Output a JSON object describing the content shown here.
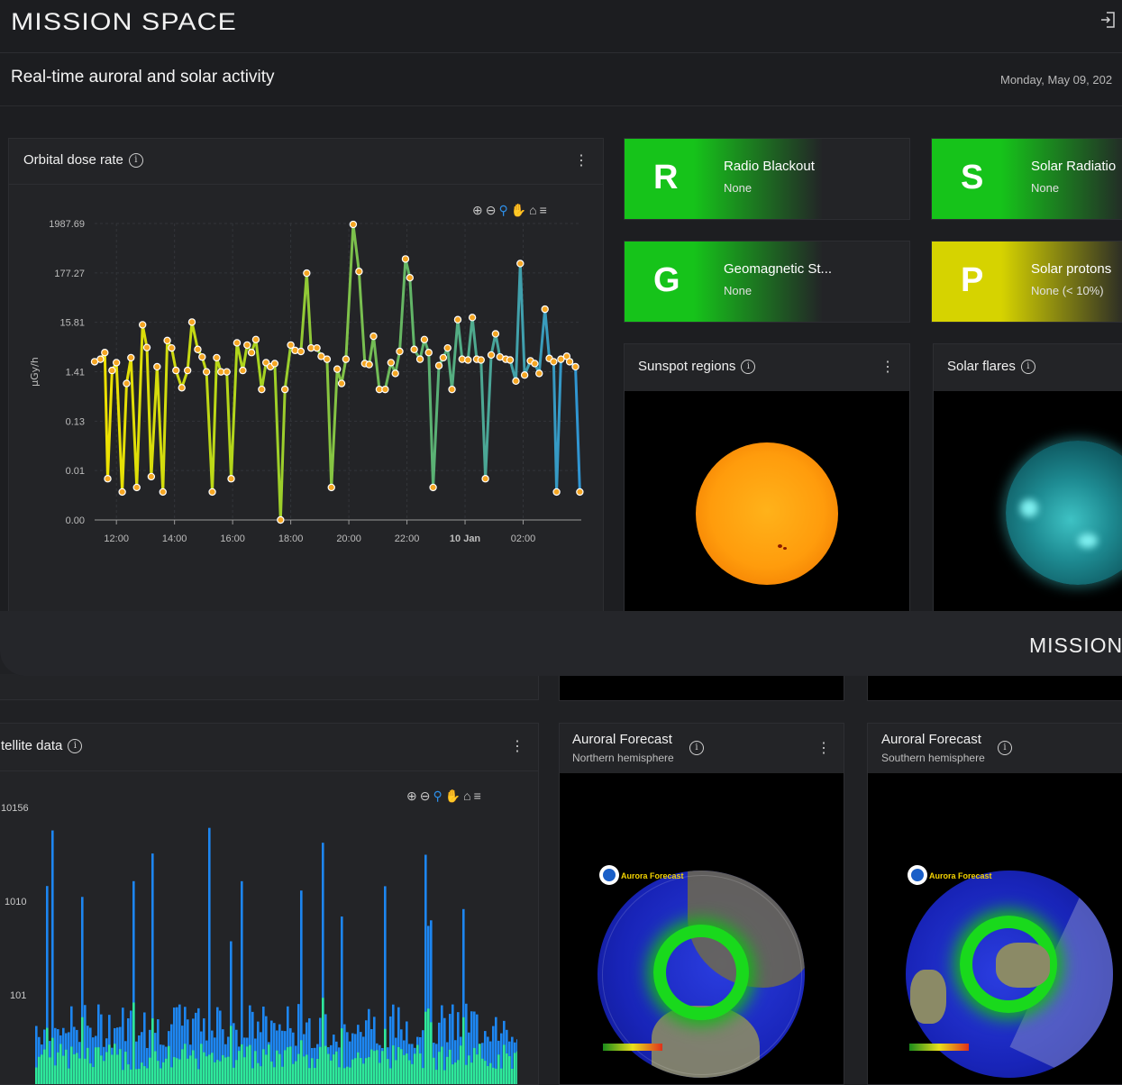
{
  "app": {
    "brand": "MISSION SPACE",
    "footer_brand": "MISSION"
  },
  "header": {
    "title": "Real-time auroral and solar activity",
    "date": "Monday, May 09, 202"
  },
  "dose_panel": {
    "title": "Orbital dose rate",
    "y_axis_label": "μGy/h",
    "toolbar": [
      "zoom-in-icon",
      "zoom-out-icon",
      "zoom-select-icon",
      "pan-icon",
      "home-icon",
      "menu-icon"
    ]
  },
  "alerts": [
    {
      "letter": "R",
      "title": "Radio Blackout",
      "status": "None",
      "color": "#16c31a"
    },
    {
      "letter": "S",
      "title": "Solar Radiatio",
      "status": "None",
      "color": "#16c31a"
    },
    {
      "letter": "G",
      "title": "Geomagnetic St...",
      "status": "None",
      "color": "#16c31a"
    },
    {
      "letter": "P",
      "title": "Solar protons",
      "status": "None (< 10%)",
      "color": "#d6d300"
    }
  ],
  "sunspot": {
    "title": "Sunspot regions"
  },
  "flares": {
    "title": "Solar flares"
  },
  "satellite": {
    "title": "tellite data",
    "y_ticks": [
      "10156",
      "1010",
      "101"
    ]
  },
  "aurora_north": {
    "title": "Auroral Forecast",
    "subtitle": "Northern hemisphere",
    "map_title": "Aurora Forecast"
  },
  "aurora_south": {
    "title": "Auroral Forecast",
    "subtitle": "Southern hemisphere",
    "map_title": "Aurora Forecast"
  },
  "chart_data": {
    "type": "line",
    "title": "Orbital dose rate",
    "ylabel": "μGy/h",
    "y_scale": "log",
    "y_ticks": [
      "0.00",
      "0.01",
      "0.13",
      "1.41",
      "15.81",
      "177.27",
      "1987.69"
    ],
    "x_ticks": [
      "12:00",
      "14:00",
      "16:00",
      "18:00",
      "20:00",
      "22:00",
      "10 Jan",
      "02:00"
    ],
    "x_range": [
      11.25,
      28.0
    ],
    "grid": true,
    "line_colors": [
      "#f2e200",
      "#a8d41f",
      "#5fb46a",
      "#2f95d3"
    ],
    "points": [
      [
        11.25,
        2.3
      ],
      [
        11.45,
        2.6
      ],
      [
        11.6,
        3.6
      ],
      [
        11.7,
        0.007
      ],
      [
        11.85,
        1.5
      ],
      [
        12.0,
        2.2
      ],
      [
        12.2,
        0.003
      ],
      [
        12.35,
        0.8
      ],
      [
        12.5,
        2.8
      ],
      [
        12.7,
        0.004
      ],
      [
        12.9,
        14
      ],
      [
        13.05,
        4.6
      ],
      [
        13.2,
        0.008
      ],
      [
        13.4,
        1.8
      ],
      [
        13.6,
        0.003
      ],
      [
        13.75,
        6.5
      ],
      [
        13.9,
        4.5
      ],
      [
        14.05,
        1.5
      ],
      [
        14.25,
        0.65
      ],
      [
        14.45,
        1.5
      ],
      [
        14.6,
        16
      ],
      [
        14.8,
        4.2
      ],
      [
        14.95,
        2.9
      ],
      [
        15.1,
        1.4
      ],
      [
        15.3,
        0.003
      ],
      [
        15.45,
        2.8
      ],
      [
        15.6,
        1.4
      ],
      [
        15.8,
        1.4
      ],
      [
        15.95,
        0.007
      ],
      [
        16.15,
        5.8
      ],
      [
        16.35,
        1.5
      ],
      [
        16.5,
        5.2
      ],
      [
        16.65,
        3.6
      ],
      [
        16.8,
        6.8
      ],
      [
        17.0,
        0.6
      ],
      [
        17.15,
        2.2
      ],
      [
        17.3,
        1.8
      ],
      [
        17.45,
        2.1
      ],
      [
        17.65,
        0.0005
      ],
      [
        17.8,
        0.6
      ],
      [
        18.0,
        5.2
      ],
      [
        18.15,
        4.0
      ],
      [
        18.35,
        3.8
      ],
      [
        18.55,
        175
      ],
      [
        18.7,
        4.5
      ],
      [
        18.9,
        4.5
      ],
      [
        19.05,
        3.0
      ],
      [
        19.25,
        2.6
      ],
      [
        19.4,
        0.004
      ],
      [
        19.6,
        1.6
      ],
      [
        19.75,
        0.8
      ],
      [
        19.9,
        2.6
      ],
      [
        20.15,
        1900
      ],
      [
        20.35,
        190
      ],
      [
        20.55,
        2.1
      ],
      [
        20.7,
        2.0
      ],
      [
        20.85,
        8.0
      ],
      [
        21.05,
        0.6
      ],
      [
        21.25,
        0.6
      ],
      [
        21.45,
        2.2
      ],
      [
        21.6,
        1.3
      ],
      [
        21.75,
        3.8
      ],
      [
        21.95,
        350
      ],
      [
        22.1,
        140
      ],
      [
        22.25,
        4.2
      ],
      [
        22.45,
        2.6
      ],
      [
        22.6,
        6.8
      ],
      [
        22.75,
        3.6
      ],
      [
        22.9,
        0.004
      ],
      [
        23.1,
        1.9
      ],
      [
        23.25,
        2.8
      ],
      [
        23.4,
        4.5
      ],
      [
        23.55,
        0.6
      ],
      [
        23.75,
        18
      ],
      [
        23.9,
        2.6
      ],
      [
        24.1,
        2.5
      ],
      [
        24.25,
        20
      ],
      [
        24.4,
        2.6
      ],
      [
        24.55,
        2.5
      ],
      [
        24.7,
        0.007
      ],
      [
        24.9,
        3.2
      ],
      [
        25.05,
        9.0
      ],
      [
        25.2,
        2.9
      ],
      [
        25.4,
        2.6
      ],
      [
        25.55,
        2.5
      ],
      [
        25.75,
        0.9
      ],
      [
        25.9,
        280
      ],
      [
        26.05,
        1.2
      ],
      [
        26.25,
        2.4
      ],
      [
        26.4,
        2.1
      ],
      [
        26.55,
        1.3
      ],
      [
        26.75,
        30
      ],
      [
        26.9,
        2.7
      ],
      [
        27.05,
        2.3
      ],
      [
        27.15,
        0.003
      ],
      [
        27.3,
        2.6
      ],
      [
        27.5,
        3.0
      ],
      [
        27.6,
        2.3
      ],
      [
        27.8,
        1.8
      ],
      [
        27.95,
        0.003
      ]
    ]
  }
}
